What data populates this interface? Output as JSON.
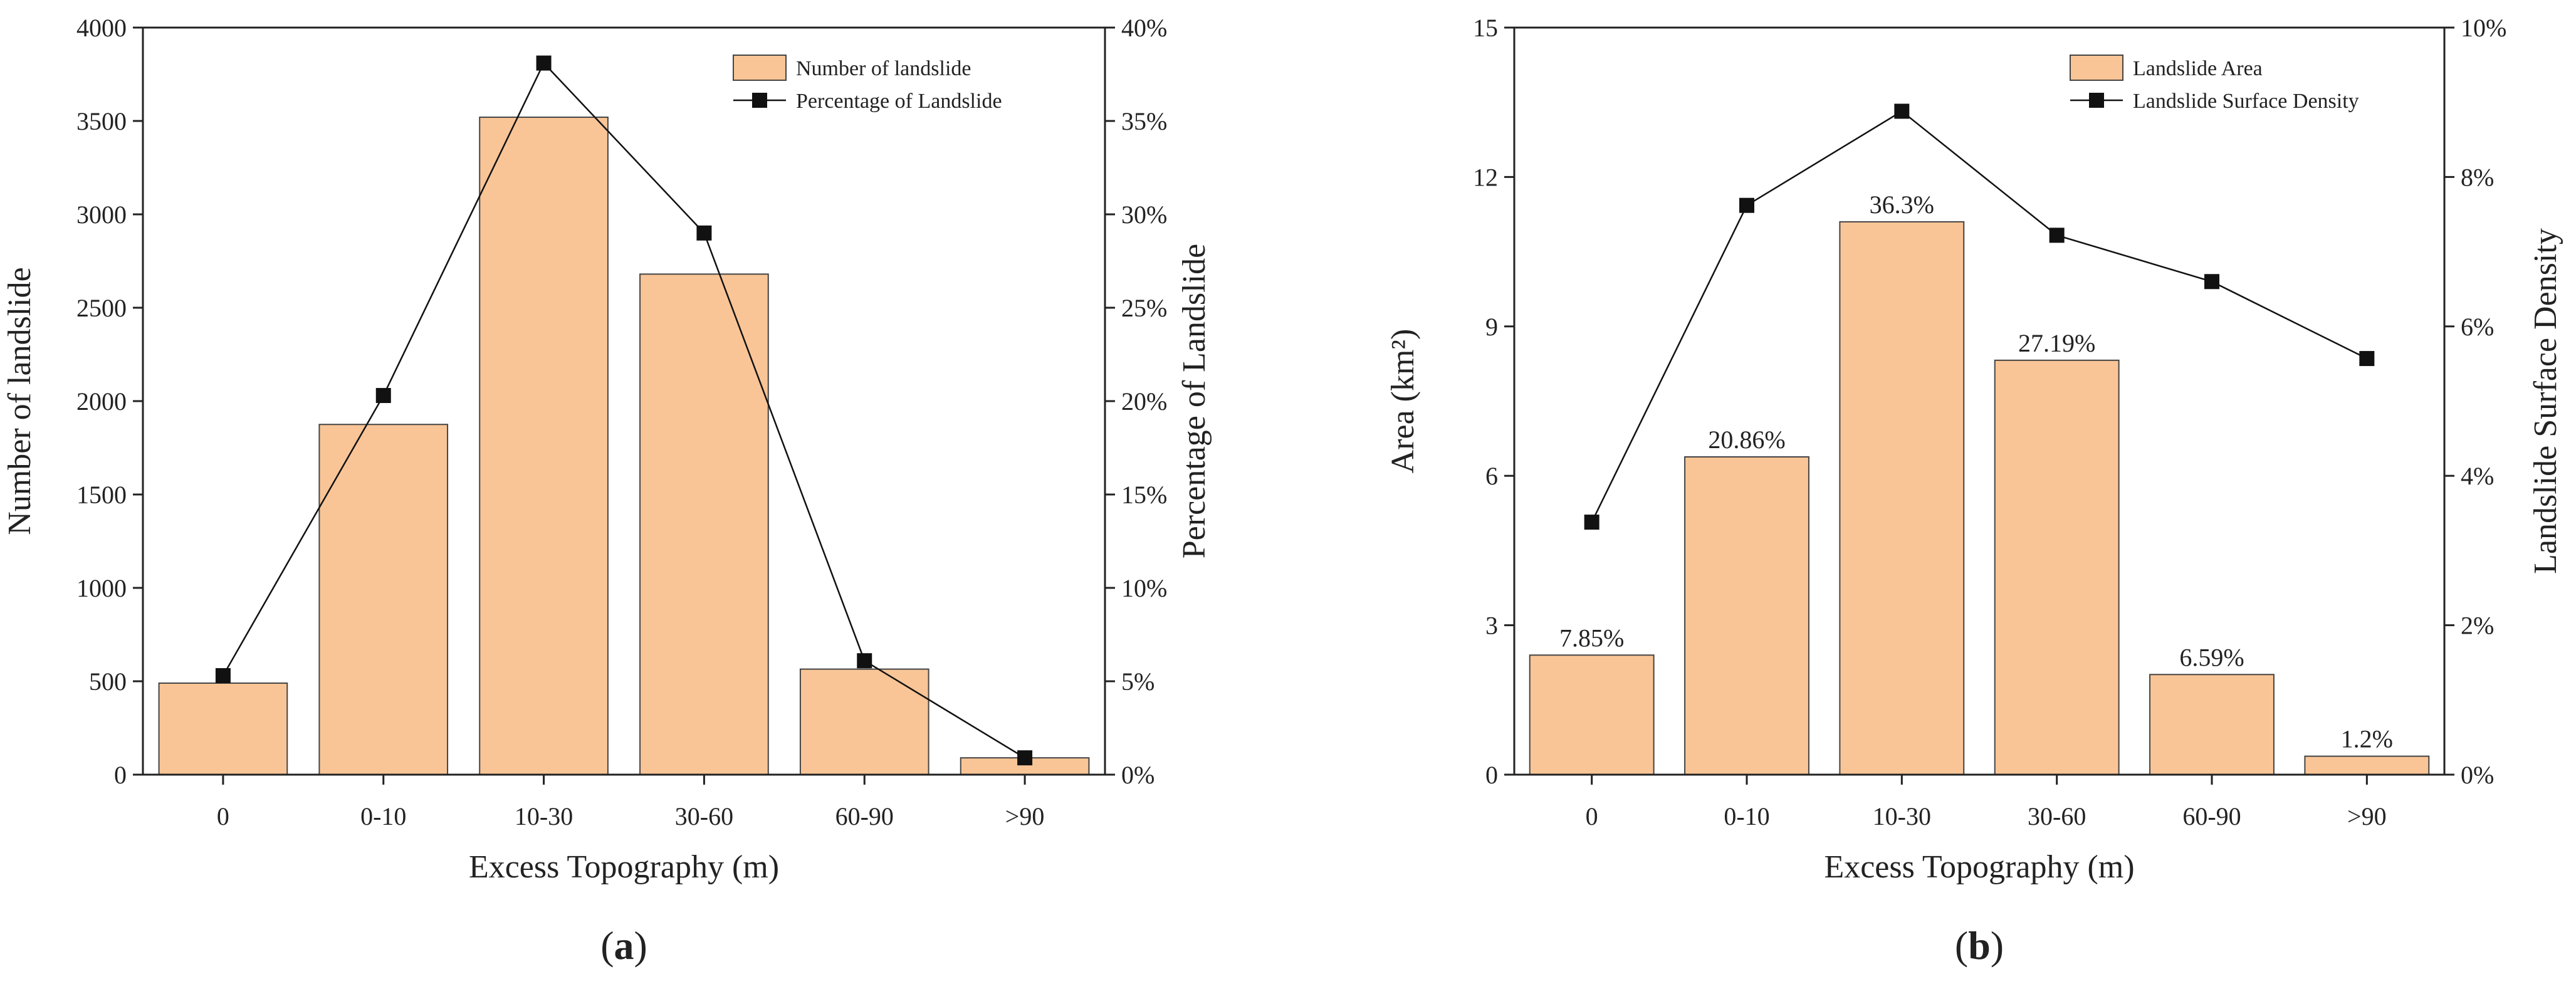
{
  "chart_data": [
    {
      "type": "bar+line",
      "panel_label": "a",
      "categories": [
        "0",
        "0-10",
        "10-30",
        "30-60",
        "60-90",
        ">90"
      ],
      "xlabel": "Excess Topography (m)",
      "ylabel_left": "Number of landslide",
      "ylabel_right": "Percentage of Landslide",
      "ylim_left": [
        0,
        4000
      ],
      "ylim_right": [
        0,
        40
      ],
      "left_ticks": [
        "0",
        "500",
        "1000",
        "1500",
        "2000",
        "2500",
        "3000",
        "3500",
        "4000"
      ],
      "right_ticks": [
        "0%",
        "5%",
        "10%",
        "15%",
        "20%",
        "25%",
        "30%",
        "35%",
        "40%"
      ],
      "bar_series": {
        "name": "Number of landslide",
        "values": [
          490,
          1875,
          3520,
          2680,
          565,
          90
        ]
      },
      "line_series": {
        "name": "Percentage of Landslide",
        "values": [
          5.3,
          20.3,
          38.1,
          29.0,
          6.1,
          0.9
        ]
      },
      "bar_labels": [],
      "legend_position": "top-right",
      "bar_color": "#f9c597",
      "line_color": "#111111"
    },
    {
      "type": "bar+line",
      "panel_label": "b",
      "categories": [
        "0",
        "0-10",
        "10-30",
        "30-60",
        "60-90",
        ">90"
      ],
      "xlabel": "Excess Topography (m)",
      "ylabel_left": "Area (km²)",
      "ylabel_right": "Landslide Surface Density",
      "ylim_left": [
        0,
        15
      ],
      "ylim_right": [
        0,
        10
      ],
      "left_ticks": [
        "0",
        "3",
        "6",
        "9",
        "12",
        "15"
      ],
      "right_ticks": [
        "0%",
        "2%",
        "4%",
        "6%",
        "8%",
        "10%"
      ],
      "bar_series": {
        "name": "Landslide Area",
        "values": [
          2.4,
          6.38,
          11.1,
          8.32,
          2.01,
          0.37
        ]
      },
      "line_series": {
        "name": "Landslide Surface Density",
        "values": [
          3.38,
          7.62,
          8.88,
          7.22,
          6.6,
          5.57
        ]
      },
      "bar_labels": [
        "7.85%",
        "20.86%",
        "36.3%",
        "27.19%",
        "6.59%",
        "1.2%"
      ],
      "legend_position": "top-right",
      "bar_color": "#f9c597",
      "line_color": "#111111"
    }
  ]
}
